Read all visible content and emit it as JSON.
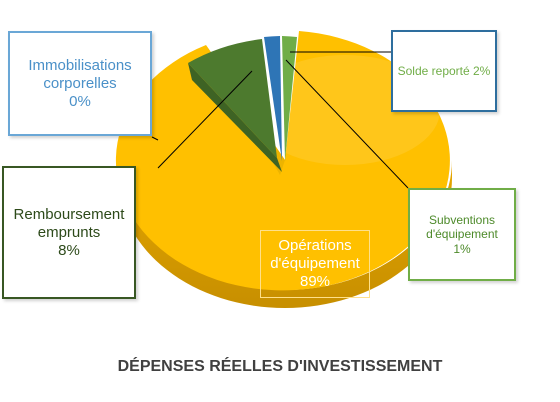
{
  "chart_data": {
    "type": "pie",
    "title": "DÉPENSES RÉELLES D'INVESTISSEMENT",
    "slices": [
      {
        "label_lines": [
          "Immobilisations",
          "corporelles"
        ],
        "pct_label": "0%",
        "value": 0,
        "color": "#4a8fc9"
      },
      {
        "label_lines": [
          "Solde reporté 2%"
        ],
        "pct_label": "",
        "value": 2,
        "color": "#70ad47"
      },
      {
        "label_lines": [
          "Subventions",
          "d'équipement"
        ],
        "pct_label": "1%",
        "value": 1,
        "color": "#2e75b6"
      },
      {
        "label_lines": [
          "Opérations",
          "d'équipement"
        ],
        "pct_label": "89%",
        "value": 89,
        "color": "#ffc000"
      },
      {
        "label_lines": [
          "Remboursement",
          "emprunts"
        ],
        "pct_label": "8%",
        "value": 8,
        "color": "#4d7a2e"
      }
    ],
    "style": "3d-exploded",
    "legend": "none"
  },
  "colors": {
    "title": "#404040",
    "label_immobilisations": "#4a90c8",
    "label_solde": "#70ad47",
    "label_subventions": "#4d8a2a",
    "label_remboursement": "#2d4a1a",
    "border_immobilisations": "#6aa7d6",
    "border_solde": "#2e6e9e",
    "border_subventions": "#70ad47",
    "border_remboursement": "#385723",
    "label_operations": "#ffffff"
  }
}
